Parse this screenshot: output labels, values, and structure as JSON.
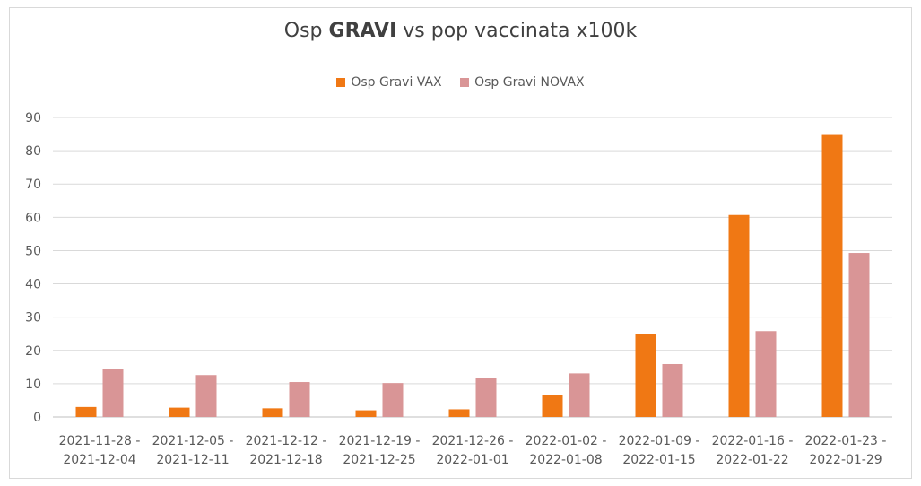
{
  "chart_data": {
    "type": "bar",
    "title_prefix": "Osp",
    "title_bold": "GRAVI",
    "title_suffix": "vs pop vaccinata x100k",
    "categories": [
      [
        "2021-11-28 -",
        "2021-12-04"
      ],
      [
        "2021-12-05 -",
        "2021-12-11"
      ],
      [
        "2021-12-12 -",
        "2021-12-18"
      ],
      [
        "2021-12-19 -",
        "2021-12-25"
      ],
      [
        "2021-12-26 -",
        "2022-01-01"
      ],
      [
        "2022-01-02 -",
        "2022-01-08"
      ],
      [
        "2022-01-09 -",
        "2022-01-15"
      ],
      [
        "2022-01-16 -",
        "2022-01-22"
      ],
      [
        "2022-01-23 -",
        "2022-01-29"
      ]
    ],
    "series": [
      {
        "name": "Osp Gravi VAX",
        "color": "#f07814",
        "values": [
          3.0,
          2.8,
          2.6,
          2.0,
          2.3,
          6.6,
          24.8,
          60.7,
          85.0
        ]
      },
      {
        "name": "Osp Gravi NOVAX",
        "color": "#d99596",
        "values": [
          14.4,
          12.6,
          10.5,
          10.2,
          11.8,
          13.1,
          15.9,
          25.8,
          49.3
        ]
      }
    ],
    "ylim": [
      0,
      90
    ],
    "yticks": [
      0,
      10,
      20,
      30,
      40,
      50,
      60,
      70,
      80,
      90
    ],
    "grid": true,
    "legend_position": "top-center",
    "xlabel": "",
    "ylabel": ""
  }
}
